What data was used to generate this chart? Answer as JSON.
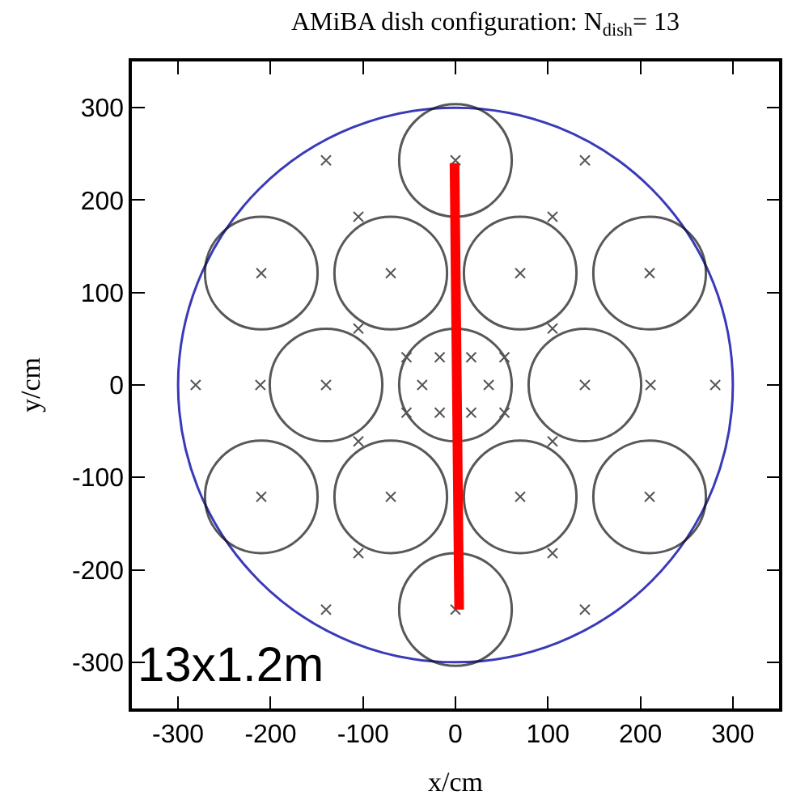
{
  "chart_data": {
    "type": "scatter",
    "title": "AMiBA dish configuration: N$_{dish}$= 13",
    "xlabel": "x/cm",
    "ylabel": "y/cm",
    "xlim": [
      -350,
      350
    ],
    "ylim": [
      -350,
      350
    ],
    "xticks": [
      -300,
      -200,
      -100,
      0,
      100,
      200,
      300
    ],
    "yticks": [
      -300,
      -200,
      -100,
      0,
      100,
      200,
      300
    ],
    "grid": false,
    "legend": false,
    "series": [
      {
        "type": "bubble",
        "color": "#111111",
        "x": [
          0,
          -70,
          70,
          -210,
          210,
          -140,
          0,
          140,
          -70,
          70,
          -210,
          210,
          0
        ],
        "values": [
          243,
          121,
          121,
          121,
          121,
          0,
          0,
          0,
          -121,
          -121,
          -121,
          -121,
          -243
        ],
        "sizes": [
          1,
          1,
          1,
          1,
          1,
          1,
          1,
          1,
          1,
          1,
          1,
          1,
          1
        ]
      },
      {
        "marker": "cross",
        "color": "#555555",
        "x": [
          0,
          -140,
          140,
          -105,
          105,
          -70,
          70,
          -210,
          210,
          0,
          -105,
          105,
          -53,
          -17,
          17,
          53,
          -281,
          -211,
          -140,
          -36,
          36,
          140,
          211,
          281,
          -53,
          -17,
          17,
          53,
          -105,
          105,
          -70,
          70,
          -210,
          210,
          0,
          -105,
          105,
          -140,
          140,
          0
        ],
        "values": [
          243,
          243,
          243,
          182,
          182,
          121,
          121,
          121,
          121,
          null,
          61,
          61,
          30,
          30,
          30,
          30,
          0,
          0,
          0,
          0,
          0,
          0,
          0,
          0,
          -30,
          -30,
          -30,
          -30,
          -61,
          -61,
          -121,
          -121,
          -121,
          -121,
          null,
          -182,
          -182,
          -243,
          -243,
          -243
        ]
      },
      {
        "type": "line",
        "color": "#ff0000",
        "x": [
          -1,
          4
        ],
        "values": [
          240,
          -243
        ]
      }
    ],
    "annotations": [
      "13x1.2m"
    ]
  }
}
